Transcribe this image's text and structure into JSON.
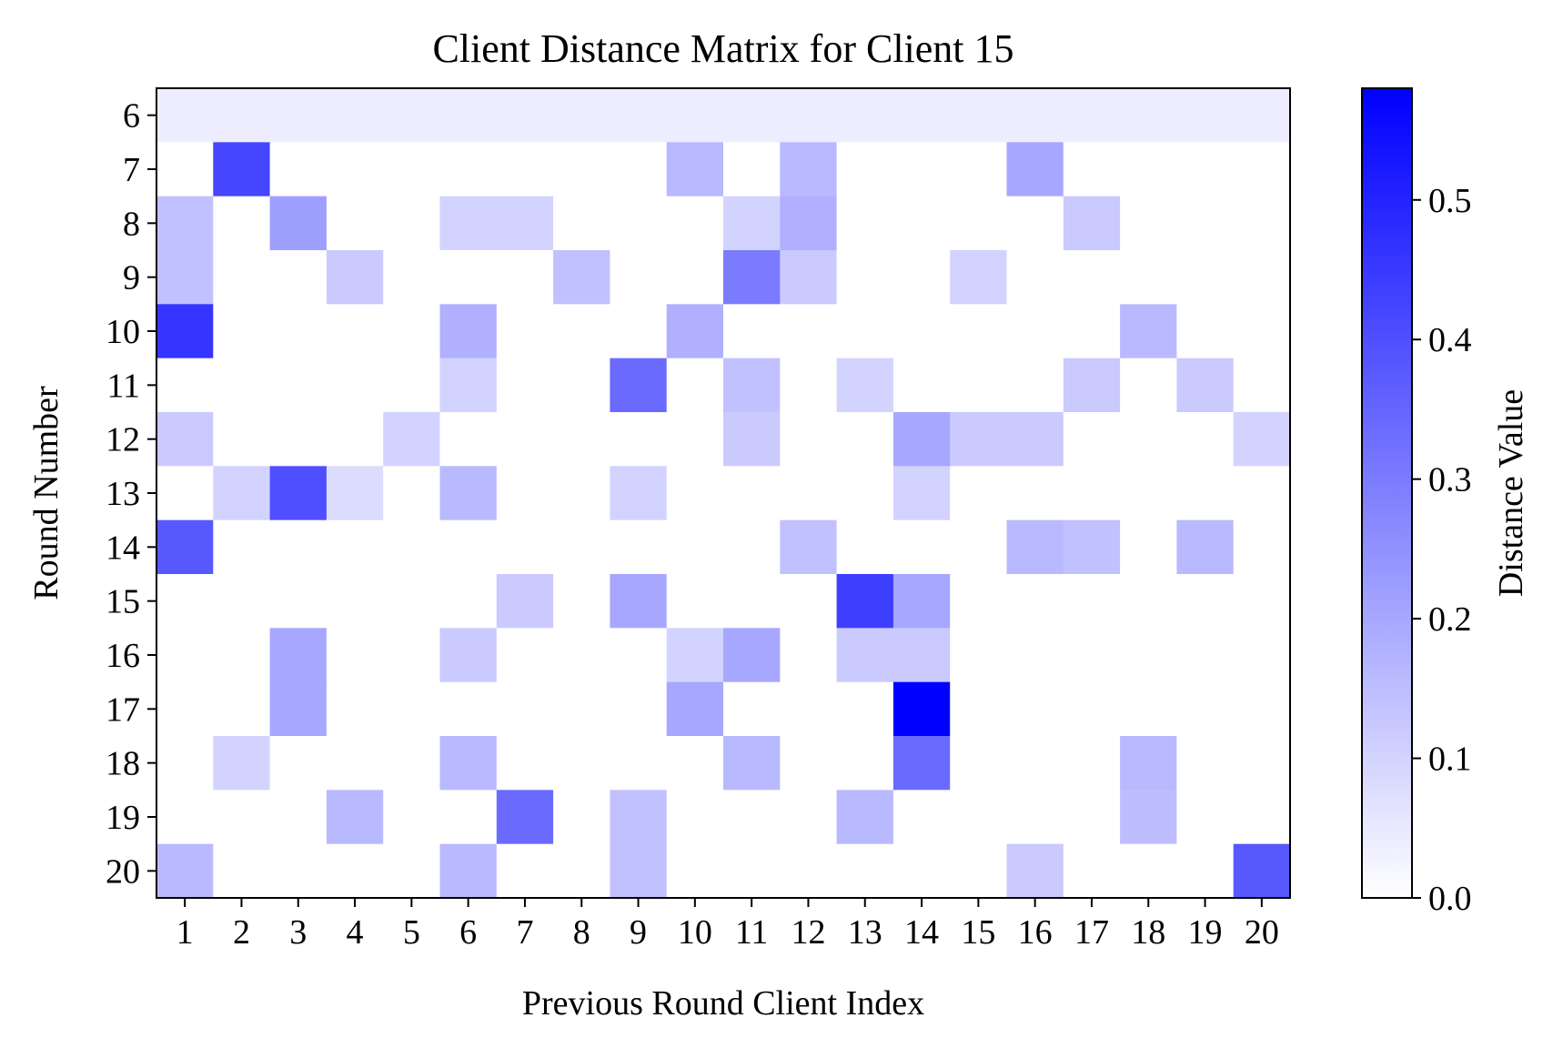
{
  "chart_data": {
    "type": "heatmap",
    "title": "Client Distance Matrix for Client 15",
    "xlabel": "Previous Round Client Index",
    "ylabel": "Round Number",
    "x": [
      1,
      2,
      3,
      4,
      5,
      6,
      7,
      8,
      9,
      10,
      11,
      12,
      13,
      14,
      15,
      16,
      17,
      18,
      19,
      20
    ],
    "y": [
      6,
      7,
      8,
      9,
      10,
      11,
      12,
      13,
      14,
      15,
      16,
      17,
      18,
      19,
      20
    ],
    "values": [
      [
        0.04,
        0.04,
        0.04,
        0.04,
        0.04,
        0.04,
        0.04,
        0.04,
        0.04,
        0.04,
        0.04,
        0.04,
        0.04,
        0.04,
        0.04,
        0.04,
        0.04,
        0.04,
        0.04,
        0.04
      ],
      [
        0,
        0.42,
        0,
        0,
        0,
        0,
        0,
        0,
        0,
        0.16,
        0,
        0.16,
        0,
        0,
        0,
        0.2,
        0,
        0,
        0,
        0
      ],
      [
        0.14,
        0,
        0.22,
        0,
        0,
        0.1,
        0.1,
        0,
        0,
        0,
        0.1,
        0.18,
        0,
        0,
        0,
        0,
        0.12,
        0,
        0,
        0
      ],
      [
        0.14,
        0,
        0,
        0.12,
        0,
        0,
        0,
        0.14,
        0,
        0,
        0.3,
        0.12,
        0,
        0,
        0.1,
        0,
        0,
        0,
        0,
        0
      ],
      [
        0.46,
        0,
        0,
        0,
        0,
        0.18,
        0,
        0,
        0,
        0.18,
        0,
        0,
        0,
        0,
        0,
        0,
        0,
        0.16,
        0,
        0
      ],
      [
        0,
        0,
        0,
        0,
        0,
        0.1,
        0,
        0,
        0.34,
        0,
        0.14,
        0,
        0.1,
        0,
        0,
        0,
        0.12,
        0,
        0.12,
        0
      ],
      [
        0.12,
        0,
        0,
        0,
        0.1,
        0,
        0,
        0,
        0,
        0,
        0.12,
        0,
        0,
        0.2,
        0.12,
        0.12,
        0,
        0,
        0,
        0.1
      ],
      [
        0,
        0.1,
        0.4,
        0.08,
        0,
        0.16,
        0,
        0,
        0.1,
        0,
        0,
        0,
        0,
        0.1,
        0,
        0,
        0,
        0,
        0,
        0
      ],
      [
        0.38,
        0,
        0,
        0,
        0,
        0,
        0,
        0,
        0,
        0,
        0,
        0.14,
        0,
        0,
        0,
        0.16,
        0.14,
        0,
        0.16,
        0
      ],
      [
        0,
        0,
        0,
        0,
        0,
        0,
        0.12,
        0,
        0.2,
        0,
        0,
        0,
        0.44,
        0.2,
        0,
        0,
        0,
        0,
        0,
        0
      ],
      [
        0,
        0,
        0.2,
        0,
        0,
        0.12,
        0,
        0,
        0,
        0.1,
        0.2,
        0,
        0.12,
        0.12,
        0,
        0,
        0,
        0,
        0,
        0
      ],
      [
        0,
        0,
        0.2,
        0,
        0,
        0,
        0,
        0,
        0,
        0.2,
        0,
        0,
        0,
        0.58,
        0,
        0,
        0,
        0,
        0,
        0
      ],
      [
        0,
        0.1,
        0,
        0,
        0,
        0.16,
        0,
        0,
        0,
        0,
        0.16,
        0,
        0,
        0.34,
        0,
        0,
        0,
        0.16,
        0,
        0
      ],
      [
        0,
        0,
        0,
        0.16,
        0,
        0,
        0.34,
        0,
        0.14,
        0,
        0,
        0,
        0.16,
        0,
        0,
        0,
        0,
        0.15,
        0,
        0
      ],
      [
        0.16,
        0,
        0,
        0,
        0,
        0.16,
        0,
        0,
        0.14,
        0,
        0,
        0,
        0,
        0,
        0,
        0.12,
        0,
        0,
        0,
        0.38
      ]
    ],
    "vmin": 0,
    "vmax": 0.58,
    "colormap": [
      "#ffffff",
      "#0000ff"
    ],
    "colorbar": {
      "label": "Distance Value",
      "ticks": [
        0.0,
        0.1,
        0.2,
        0.3,
        0.4,
        0.5
      ],
      "tick_labels": [
        "0.0",
        "0.1",
        "0.2",
        "0.3",
        "0.4",
        "0.5"
      ]
    },
    "grid": false
  }
}
